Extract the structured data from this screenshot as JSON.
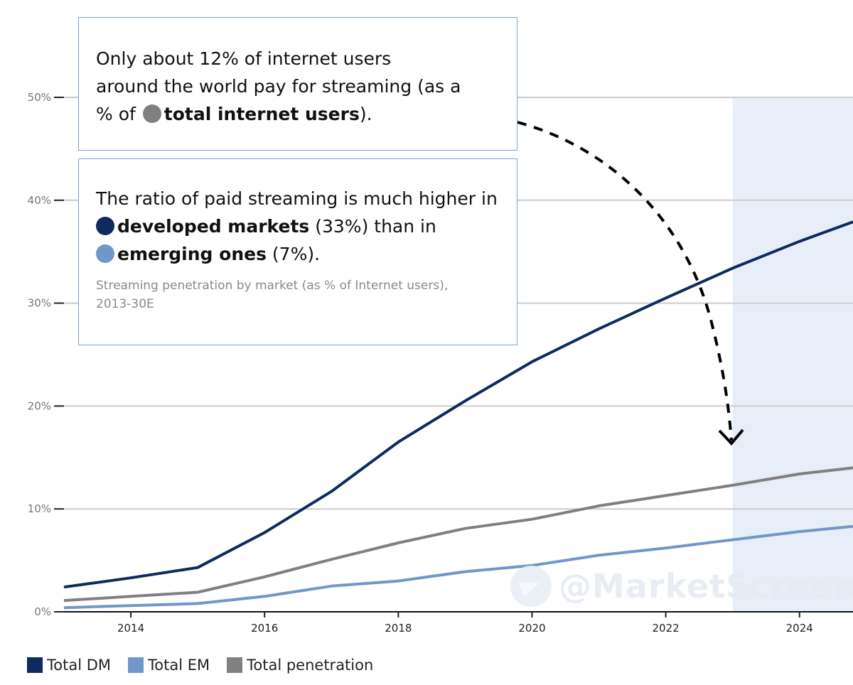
{
  "colors": {
    "dm": "#0d2b5e",
    "em": "#7196c9",
    "total": "#808080",
    "forecast_shade": "#e8eef8",
    "grid": "#cccccc"
  },
  "annotation_1": {
    "line1": "Only about 12% of internet users",
    "line2": "around the world pay for streaming (as a",
    "line3_pre": "% of ",
    "line3_bold": "total internet users",
    "line3_post": ")."
  },
  "annotation_2": {
    "line1": "The ratio of paid streaming is much higher in",
    "dm_bold": "developed markets",
    "dm_post": " (33%) than in",
    "em_bold": "emerging ones",
    "em_post": " (7%).",
    "sub1": "Streaming penetration by market (as % of Internet users),",
    "sub2": "2013-30E"
  },
  "watermark": "@MarketScreen",
  "chart_data": {
    "type": "line",
    "x": [
      2013,
      2014,
      2015,
      2016,
      2017,
      2018,
      2019,
      2020,
      2021,
      2022,
      2023,
      2024,
      2024.8
    ],
    "series": [
      {
        "name": "Total DM",
        "values": [
          2.4,
          3.3,
          4.3,
          7.7,
          11.7,
          16.5,
          20.5,
          24.3,
          27.5,
          30.5,
          33.4,
          36.0,
          37.9
        ]
      },
      {
        "name": "Total EM",
        "values": [
          0.4,
          0.6,
          0.8,
          1.5,
          2.5,
          3.0,
          3.9,
          4.5,
          5.5,
          6.2,
          7.0,
          7.8,
          8.3
        ]
      },
      {
        "name": "Total penetration",
        "values": [
          1.1,
          1.5,
          1.9,
          3.4,
          5.1,
          6.7,
          8.1,
          9.0,
          10.3,
          11.3,
          12.3,
          13.4,
          14.0
        ]
      }
    ],
    "xlim": [
      2013,
      2024.8
    ],
    "ylim": [
      0,
      50
    ],
    "x_ticks": [
      2014,
      2016,
      2018,
      2020,
      2022,
      2024
    ],
    "y_ticks": [
      0,
      10,
      20,
      30,
      40,
      50
    ],
    "y_tick_labels": [
      "0%",
      "10%",
      "20%",
      "30%",
      "40%",
      "50%"
    ],
    "forecast_start": 2023,
    "grid": true,
    "legend_position": "bottom-left"
  }
}
